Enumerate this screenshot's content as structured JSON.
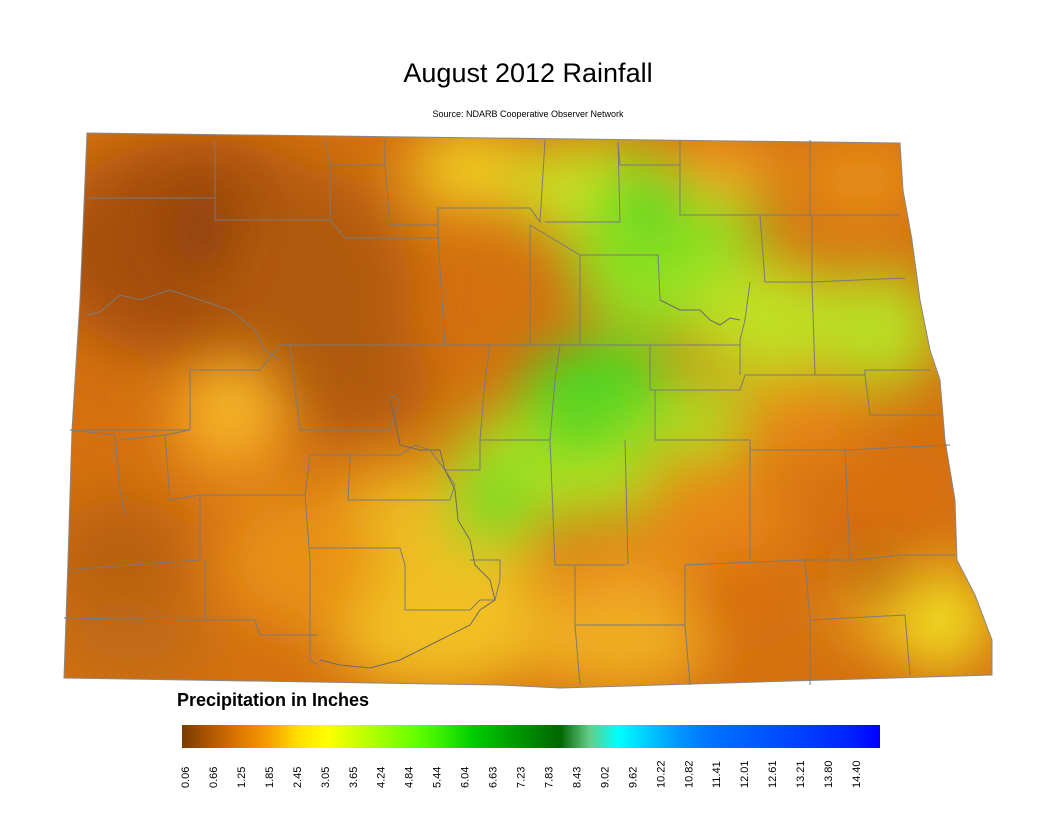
{
  "title": "August 2012 Rainfall",
  "source": "Source: NDARB Cooperative Observer Network",
  "legend": {
    "title": "Precipitation in Inches",
    "ticks": [
      "0.06",
      "0.66",
      "1.25",
      "1.85",
      "2.45",
      "3.05",
      "3.65",
      "4.24",
      "4.84",
      "5.44",
      "6.04",
      "6.63",
      "7.23",
      "7.83",
      "8.43",
      "9.02",
      "9.62",
      "10.22",
      "10.82",
      "11.41",
      "12.01",
      "12.61",
      "13.21",
      "13.80",
      "14.40"
    ],
    "colors": [
      "#7a3a00",
      "#b05800",
      "#e07800",
      "#f5a000",
      "#ffe000",
      "#ffff00",
      "#ccff00",
      "#99ff00",
      "#66ff00",
      "#33ee00",
      "#00cc00",
      "#00aa00",
      "#008800",
      "#006600",
      "#66cc88",
      "#00ffff",
      "#00ccff",
      "#0099ff",
      "#0077ff",
      "#0066ff",
      "#0055ff",
      "#0044ff",
      "#0033ff",
      "#0022ff",
      "#0000ff"
    ]
  },
  "chart_data": {
    "type": "heatmap",
    "title": "August 2012 Rainfall",
    "subtitle": "Source: NDARB Cooperative Observer Network",
    "colorbar_label": "Precipitation in Inches",
    "value_range": [
      0.06,
      14.4
    ],
    "observed_range_approx": [
      0.06,
      5.2
    ]
  }
}
